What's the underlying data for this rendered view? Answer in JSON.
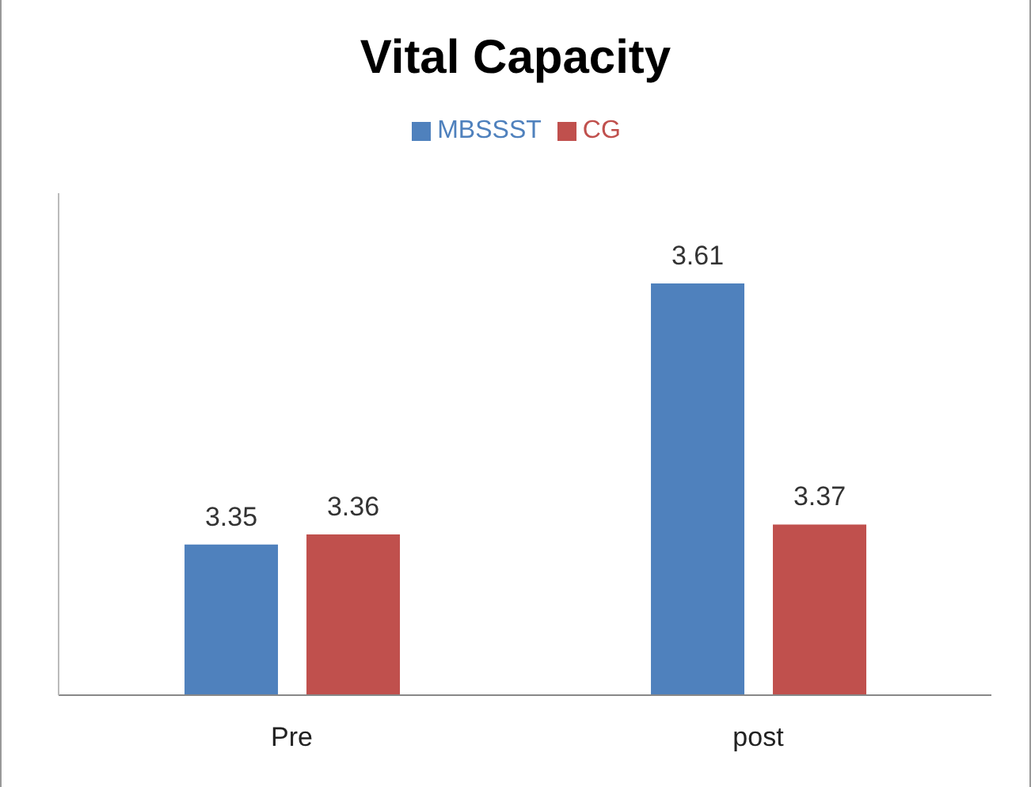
{
  "chart_data": {
    "type": "bar",
    "title": "Vital Capacity",
    "categories": [
      "Pre",
      "post"
    ],
    "series": [
      {
        "name": "MBSSST",
        "color": "#4f81bd",
        "values": [
          3.35,
          3.61
        ]
      },
      {
        "name": "CG",
        "color": "#c0504d",
        "values": [
          3.36,
          3.37
        ]
      }
    ],
    "ylim": [
      3.2,
      3.7
    ],
    "tick_labels": "x",
    "data_labels": true,
    "legend": "top",
    "grid": false
  }
}
